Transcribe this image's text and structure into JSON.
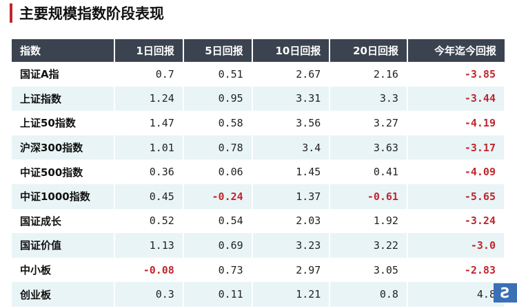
{
  "title": "主要规模指数阶段表现",
  "headers": [
    "指数",
    "1日回报",
    "5日回报",
    "10日回报",
    "20日回报",
    "今年迄今回报"
  ],
  "rows": [
    [
      "国证A指",
      "0.7",
      "0.51",
      "2.67",
      "2.16",
      "-3.85"
    ],
    [
      "上证指数",
      "1.24",
      "0.95",
      "3.31",
      "3.3",
      "-3.44"
    ],
    [
      "上证50指数",
      "1.47",
      "0.58",
      "3.56",
      "3.27",
      "-4.19"
    ],
    [
      "沪深300指数",
      "1.01",
      "0.78",
      "3.4",
      "3.63",
      "-3.17"
    ],
    [
      "中证500指数",
      "0.36",
      "0.06",
      "1.45",
      "0.41",
      "-4.09"
    ],
    [
      "中证1000指数",
      "0.45",
      "-0.24",
      "1.37",
      "-0.61",
      "-5.65"
    ],
    [
      "国证成长",
      "0.52",
      "0.54",
      "2.03",
      "1.92",
      "-3.24"
    ],
    [
      "国证价值",
      "1.13",
      "0.69",
      "3.23",
      "3.22",
      "-3.0"
    ],
    [
      "中小板",
      "-0.08",
      "0.73",
      "2.97",
      "3.05",
      "-2.83"
    ],
    [
      "创业板",
      "0.3",
      "0.11",
      "1.21",
      "0.8",
      "4.8"
    ]
  ],
  "colors": {
    "accent": "#c0262d",
    "header_bg": "#3c4350",
    "alt_row": "#e9f4f6"
  },
  "watermark_icon": "logo-icon"
}
